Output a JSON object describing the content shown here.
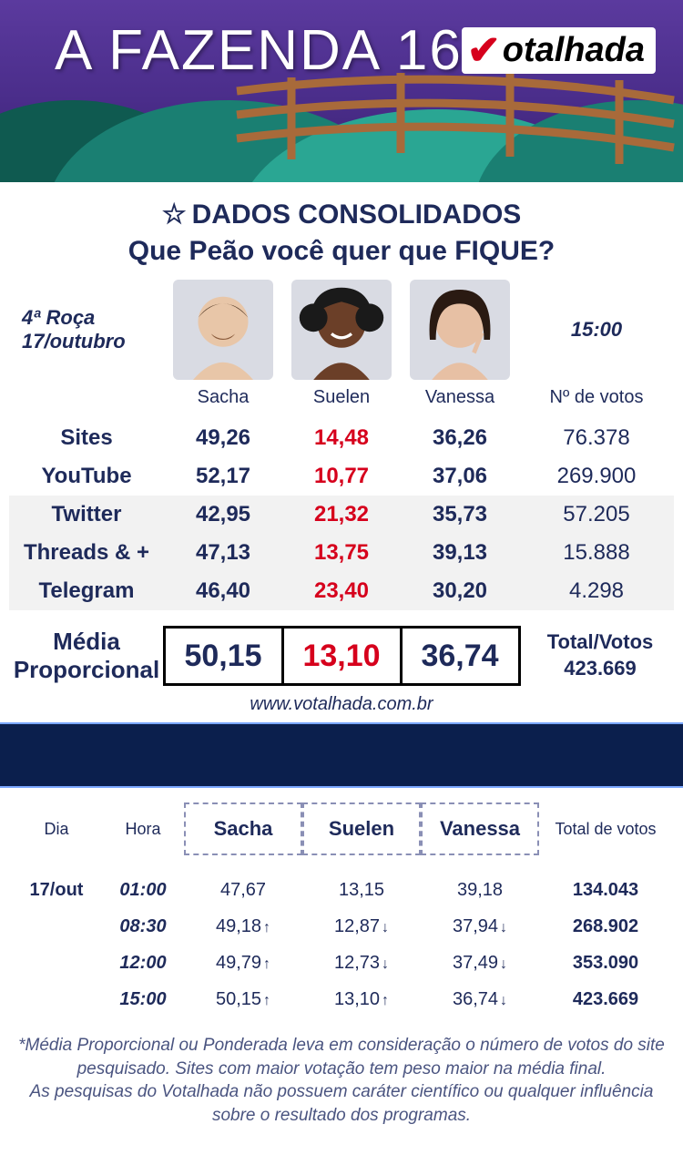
{
  "banner": {
    "title": "A FAZENDA 16",
    "logo_text": "otalhada",
    "logo_check": "✔",
    "bg_gradient_top": "#5b3a9e",
    "bg_gradient_bottom": "#3a2270",
    "hill_colors": [
      "#1a7f72",
      "#0f5a50",
      "#2aa693"
    ],
    "fence_color": "#a86a3a"
  },
  "headings": {
    "consolidated": "DADOS CONSOLIDADOS",
    "question": "Que Peão você quer que FIQUE?"
  },
  "meta": {
    "round_label_line1": "4ª Roça",
    "round_label_line2": "17/outubro",
    "time": "15:00",
    "votes_header": "Nº de votos"
  },
  "contestants": [
    {
      "name": "Sacha",
      "skin": "#e8c6a8",
      "hair": "#5a402c"
    },
    {
      "name": "Suelen",
      "skin": "#6b3f28",
      "hair": "#1a1a1a"
    },
    {
      "name": "Vanessa",
      "skin": "#e7c0a4",
      "hair": "#2a1a12"
    }
  ],
  "sources": [
    {
      "label": "Sites",
      "vals": [
        "49,26",
        "14,48",
        "36,26"
      ],
      "lowest_idx": 1,
      "votes": "76.378",
      "alt": false
    },
    {
      "label": "YouTube",
      "vals": [
        "52,17",
        "10,77",
        "37,06"
      ],
      "lowest_idx": 1,
      "votes": "269.900",
      "alt": false
    },
    {
      "label": "Twitter",
      "vals": [
        "42,95",
        "21,32",
        "35,73"
      ],
      "lowest_idx": 1,
      "votes": "57.205",
      "alt": true
    },
    {
      "label": "Threads & +",
      "vals": [
        "47,13",
        "13,75",
        "39,13"
      ],
      "lowest_idx": 1,
      "votes": "15.888",
      "alt": true
    },
    {
      "label": "Telegram",
      "vals": [
        "46,40",
        "23,40",
        "30,20"
      ],
      "lowest_idx": 1,
      "votes": "4.298",
      "alt": true
    }
  ],
  "media": {
    "label_line1": "Média",
    "label_line2": "Proporcional",
    "vals": [
      "50,15",
      "13,10",
      "36,74"
    ],
    "lowest_idx": 1,
    "total_label": "Total/Votos",
    "total_value": "423.669"
  },
  "site_url": "www.votalhada.com.br",
  "history": {
    "headers": {
      "day": "Dia",
      "hour": "Hora",
      "total": "Total de votos"
    },
    "rows": [
      {
        "day": "17/out",
        "hour": "01:00",
        "vals": [
          "47,67",
          "13,15",
          "39,18"
        ],
        "arrows": [
          "",
          "",
          ""
        ],
        "total": "134.043"
      },
      {
        "day": "",
        "hour": "08:30",
        "vals": [
          "49,18",
          "12,87",
          "37,94"
        ],
        "arrows": [
          "↑",
          "↓",
          "↓"
        ],
        "total": "268.902"
      },
      {
        "day": "",
        "hour": "12:00",
        "vals": [
          "49,79",
          "12,73",
          "37,49"
        ],
        "arrows": [
          "↑",
          "↓",
          "↓"
        ],
        "total": "353.090"
      },
      {
        "day": "",
        "hour": "15:00",
        "vals": [
          "50,15",
          "13,10",
          "36,74"
        ],
        "arrows": [
          "↑",
          "↑",
          "↓"
        ],
        "total": "423.669"
      }
    ]
  },
  "footnote": "*Média Proporcional ou Ponderada leva em consideração o número de votos do site pesquisado. Sites com maior votação tem peso maior na média final.\nAs pesquisas do Votalhada não possuem caráter científico ou qualquer influência sobre o resultado dos programas.",
  "colors": {
    "text_primary": "#1e2a5a",
    "text_red": "#d6001c",
    "alt_row_bg": "#f2f2f2",
    "navy_bar": "#0b1f4d",
    "dashed_border": "#8a8fb5"
  }
}
